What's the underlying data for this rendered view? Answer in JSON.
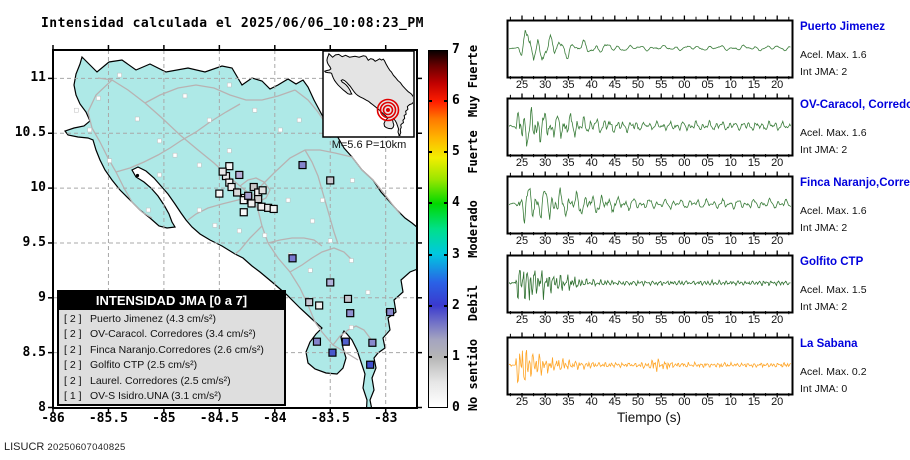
{
  "header": {
    "title": "Intensidad calculada el 2025/06/06_10:08:23_PM"
  },
  "footer": {
    "agency": "LISUCR",
    "run_id": "20250607040825"
  },
  "map": {
    "inset_label": "M=5.6 P=10km",
    "x_tick_labels": [
      "-86",
      "-85.5",
      "-85",
      "-84.5",
      "-84",
      "-83.5",
      "-83"
    ],
    "y_tick_labels": [
      "8",
      "8.5",
      "9",
      "9.5",
      "10",
      "10.5",
      "11"
    ],
    "legend": {
      "title": "INTENSIDAD JMA [0 a 7]",
      "items": [
        {
          "bracket": "[ 2 ]",
          "label": "Puerto Jimenez (4.3 cm/s²)"
        },
        {
          "bracket": "[ 2 ]",
          "label": "OV-Caracol. Corredores (3.4 cm/s²)"
        },
        {
          "bracket": "[ 2 ]",
          "label": "Finca Naranjo.Corredores (2.6 cm/s²)"
        },
        {
          "bracket": "[ 2 ]",
          "label": "Golfito CTP (2.5 cm/s²)"
        },
        {
          "bracket": "[ 2 ]",
          "label": "Laurel. Corredores (2.5 cm/s²)"
        },
        {
          "bracket": "[ 1 ]",
          "label": "OV-S Isidro.UNA (3.1 cm/s²)"
        }
      ]
    },
    "colorbar": {
      "tick_labels": [
        "0",
        "1",
        "2",
        "3",
        "4",
        "5",
        "6",
        "7"
      ],
      "scale_labels": [
        {
          "text": "Muy Fuerte",
          "center": 6.4
        },
        {
          "text": "Fuerte",
          "center": 5.0
        },
        {
          "text": "Moderado",
          "center": 3.5
        },
        {
          "text": "Debil",
          "center": 2.05
        },
        {
          "text": "No sentido",
          "center": 0.65
        }
      ],
      "gradient": [
        [
          0,
          "#ffffff"
        ],
        [
          0.07,
          "#e6e6e6"
        ],
        [
          0.14,
          "#b6b6b6"
        ],
        [
          0.19,
          "#a4a4c0"
        ],
        [
          0.24,
          "#6e6ec8"
        ],
        [
          0.286,
          "#3a3ace"
        ],
        [
          0.35,
          "#2a62e6"
        ],
        [
          0.43,
          "#00c8e0"
        ],
        [
          0.5,
          "#00e08a"
        ],
        [
          0.571,
          "#00d800"
        ],
        [
          0.64,
          "#9ce600"
        ],
        [
          0.7,
          "#f2ee00"
        ],
        [
          0.757,
          "#ffb400"
        ],
        [
          0.81,
          "#ff7800"
        ],
        [
          0.857,
          "#ff1e00"
        ],
        [
          0.91,
          "#c00000"
        ],
        [
          0.96,
          "#660000"
        ],
        [
          1,
          "#0a0000"
        ]
      ]
    },
    "colors": {
      "land": "#aee9e7",
      "roads": "#b8b2b2",
      "grid": "#a8a8a8",
      "epicenter": "#e00000",
      "inset_land": "#e4e4e4"
    },
    "stations": [
      {
        "lon": -84.41,
        "lat": 10.2,
        "fill": "#f4f4f4"
      },
      {
        "lon": -84.32,
        "lat": 10.12,
        "fill": "#b8b0d8"
      },
      {
        "lon": -84.44,
        "lat": 10.11,
        "fill": "#e8e8e8"
      },
      {
        "lon": -84.41,
        "lat": 10.05,
        "fill": "#f8f8f8"
      },
      {
        "lon": -84.39,
        "lat": 10.01,
        "fill": "#f0f0f0"
      },
      {
        "lon": -84.34,
        "lat": 9.96,
        "fill": "#d8d8d8"
      },
      {
        "lon": -84.27,
        "lat": 9.91,
        "fill": "#f4f4f4"
      },
      {
        "lon": -84.19,
        "lat": 10.01,
        "fill": "#c8c8c8"
      },
      {
        "lon": -84.15,
        "lat": 9.96,
        "fill": "#f0f0f0"
      },
      {
        "lon": -84.11,
        "lat": 9.98,
        "fill": "#e0e0e0"
      },
      {
        "lon": -84.28,
        "lat": 9.89,
        "fill": "#f4f4f4"
      },
      {
        "lon": -84.24,
        "lat": 9.93,
        "fill": "#a8a0d0"
      },
      {
        "lon": -84.5,
        "lat": 9.95,
        "fill": "#f8f8f8"
      },
      {
        "lon": -84.15,
        "lat": 9.9,
        "fill": "#d0d0d0"
      },
      {
        "lon": -84.12,
        "lat": 9.83,
        "fill": "#f0f0f0"
      },
      {
        "lon": -84.06,
        "lat": 9.82,
        "fill": "#e8e8e8"
      },
      {
        "lon": -84.01,
        "lat": 9.81,
        "fill": "#f4f4f4"
      },
      {
        "lon": -84.28,
        "lat": 9.78,
        "fill": "#f8f8f8"
      },
      {
        "lon": -84.47,
        "lat": 10.15,
        "fill": "#e8e8e8"
      },
      {
        "lon": -84.21,
        "lat": 9.86,
        "fill": "#f0f0f0"
      },
      {
        "lon": -83.75,
        "lat": 10.21,
        "fill": "#8484cc"
      },
      {
        "lon": -83.5,
        "lat": 10.07,
        "fill": "#c8c8d0"
      },
      {
        "lon": -83.84,
        "lat": 9.36,
        "fill": "#7878d0"
      },
      {
        "lon": -83.5,
        "lat": 9.14,
        "fill": "#b0b0d8"
      },
      {
        "lon": -83.69,
        "lat": 8.96,
        "fill": "#c8c8d4"
      },
      {
        "lon": -83.6,
        "lat": 8.93,
        "fill": "#f0f0f0"
      },
      {
        "lon": -83.34,
        "lat": 8.99,
        "fill": "#c4c4cc"
      },
      {
        "lon": -83.32,
        "lat": 8.86,
        "fill": "#9090d0"
      },
      {
        "lon": -82.96,
        "lat": 8.87,
        "fill": "#8888cc"
      },
      {
        "lon": -83.62,
        "lat": 8.6,
        "fill": "#8484cc"
      },
      {
        "lon": -83.36,
        "lat": 8.6,
        "fill": "#5060cc"
      },
      {
        "lon": -83.12,
        "lat": 8.59,
        "fill": "#8888cc"
      },
      {
        "lon": -83.48,
        "lat": 8.5,
        "fill": "#4858cc"
      },
      {
        "lon": -83.14,
        "lat": 8.39,
        "fill": "#4050cc"
      }
    ],
    "minor_stations": [
      [
        -85.59,
        10.82
      ],
      [
        -85.4,
        11.03
      ],
      [
        -85.24,
        10.63
      ],
      [
        -85.04,
        10.43
      ],
      [
        -84.81,
        10.84
      ],
      [
        -84.59,
        10.62
      ],
      [
        -84.41,
        10.94
      ],
      [
        -84.18,
        10.71
      ],
      [
        -83.95,
        10.53
      ],
      [
        -83.78,
        10.62
      ],
      [
        -85.04,
        10.12
      ],
      [
        -85.14,
        9.8
      ],
      [
        -84.68,
        9.8
      ],
      [
        -84.54,
        9.66
      ],
      [
        -84.32,
        9.61
      ],
      [
        -84.09,
        9.57
      ],
      [
        -83.86,
        9.39
      ],
      [
        -83.68,
        9.25
      ],
      [
        -84.68,
        10.21
      ],
      [
        -84.9,
        10.3
      ],
      [
        -83.66,
        9.7
      ],
      [
        -83.5,
        9.52
      ],
      [
        -83.31,
        9.34
      ],
      [
        -85.67,
        10.53
      ],
      [
        -85.49,
        10.25
      ],
      [
        -85.79,
        10.71
      ],
      [
        -83.57,
        9.89
      ],
      [
        -83.3,
        10.07
      ],
      [
        -83.16,
        9.05
      ],
      [
        -83.31,
        8.73
      ],
      [
        -84.41,
        10.34
      ],
      [
        -83.88,
        9.89
      ]
    ]
  },
  "chart_data": {
    "type": "composite",
    "charts": [
      {
        "type": "map",
        "title": "Intensidad calculada el 2025/06/06_10:08:23_PM",
        "x_range": [
          -86,
          -82.72
        ],
        "y_range": [
          8,
          11.26
        ],
        "x_ticks": [
          -86,
          -85.5,
          -85,
          -84.5,
          -84,
          -83.5,
          -83
        ],
        "y_ticks": [
          8,
          8.5,
          9,
          9.5,
          10,
          10.5,
          11
        ],
        "intensity_scale": [
          0,
          7
        ],
        "event": {
          "magnitude": 5.6,
          "depth_km": 10
        },
        "readings": [
          {
            "station": "Puerto Jimenez",
            "int_jma": 2,
            "acel_cm_s2": 4.3
          },
          {
            "station": "OV-Caracol. Corredores",
            "int_jma": 2,
            "acel_cm_s2": 3.4
          },
          {
            "station": "Finca Naranjo.Corredores",
            "int_jma": 2,
            "acel_cm_s2": 2.6
          },
          {
            "station": "Golfito CTP",
            "int_jma": 2,
            "acel_cm_s2": 2.5
          },
          {
            "station": "Laurel. Corredores",
            "int_jma": 2,
            "acel_cm_s2": 2.5
          },
          {
            "station": "OV-S Isidro.UNA",
            "int_jma": 1,
            "acel_cm_s2": 3.1
          }
        ]
      },
      {
        "type": "line",
        "xlabel": "Tiempo (s)",
        "x_tick_labels": [
          "25",
          "30",
          "35",
          "40",
          "45",
          "50",
          "55",
          "00",
          "05",
          "10",
          "15",
          "20"
        ],
        "panels": [
          {
            "station": "Puerto Jimenez",
            "acel": "Acel. Max. 1.6",
            "jma": "Int JMA: 2",
            "color": "#3a7d3a",
            "synth": {
              "seed": 11,
              "onset": 10,
              "rise": 8,
              "tau": 55,
              "floor": 0.13,
              "pre": 0.05,
              "amp": 23,
              "f1": 0.55,
              "f2": 0.23,
              "f3": 0.95,
              "noise": 0.5
            }
          },
          {
            "station": "OV-Caracol, Corredores",
            "acel": "Acel. Max. 1.6",
            "jma": "Int JMA: 2",
            "color": "#3a7d3a",
            "synth": {
              "seed": 22,
              "onset": 8,
              "rise": 5,
              "tau": 80,
              "floor": 0.2,
              "pre": 0.05,
              "amp": 25,
              "f1": 0.95,
              "f2": 0.5,
              "f3": 1.8,
              "noise": 0.9
            }
          },
          {
            "station": "Finca Naranjo,Corredores",
            "acel": "Acel. Max. 1.6",
            "jma": "Int JMA: 2",
            "color": "#3a7d3a",
            "synth": {
              "seed": 33,
              "onset": 9,
              "rise": 6,
              "tau": 95,
              "floor": 0.24,
              "pre": 0.05,
              "amp": 23,
              "f1": 0.78,
              "f2": 0.42,
              "f3": 1.5,
              "noise": 0.8
            }
          },
          {
            "station": "Golfito CTP",
            "acel": "Acel. Max. 1.5",
            "jma": "Int JMA: 2",
            "color": "#2f7030",
            "synth": {
              "seed": 44,
              "onset": 8,
              "rise": 4,
              "tau": 42,
              "floor": 0.1,
              "pre": 0.05,
              "amp": 26,
              "f1": 1.7,
              "f2": 0.95,
              "f3": 2.7,
              "noise": 1.2
            }
          },
          {
            "station": "La Sabana",
            "acel": "Acel. Max. 0.2",
            "jma": "Int JMA: 0",
            "color": "#ffa526",
            "synth": {
              "seed": 55,
              "onset": 8,
              "rise": 3,
              "tau": 36,
              "floor": 0.11,
              "pre": 0.05,
              "amp": 23,
              "f1": 1.9,
              "f2": 1.05,
              "f3": 3.1,
              "noise": 1.3,
              "bump": 0.2,
              "bumpX": 150,
              "bumpW": 11
            }
          }
        ]
      }
    ]
  }
}
